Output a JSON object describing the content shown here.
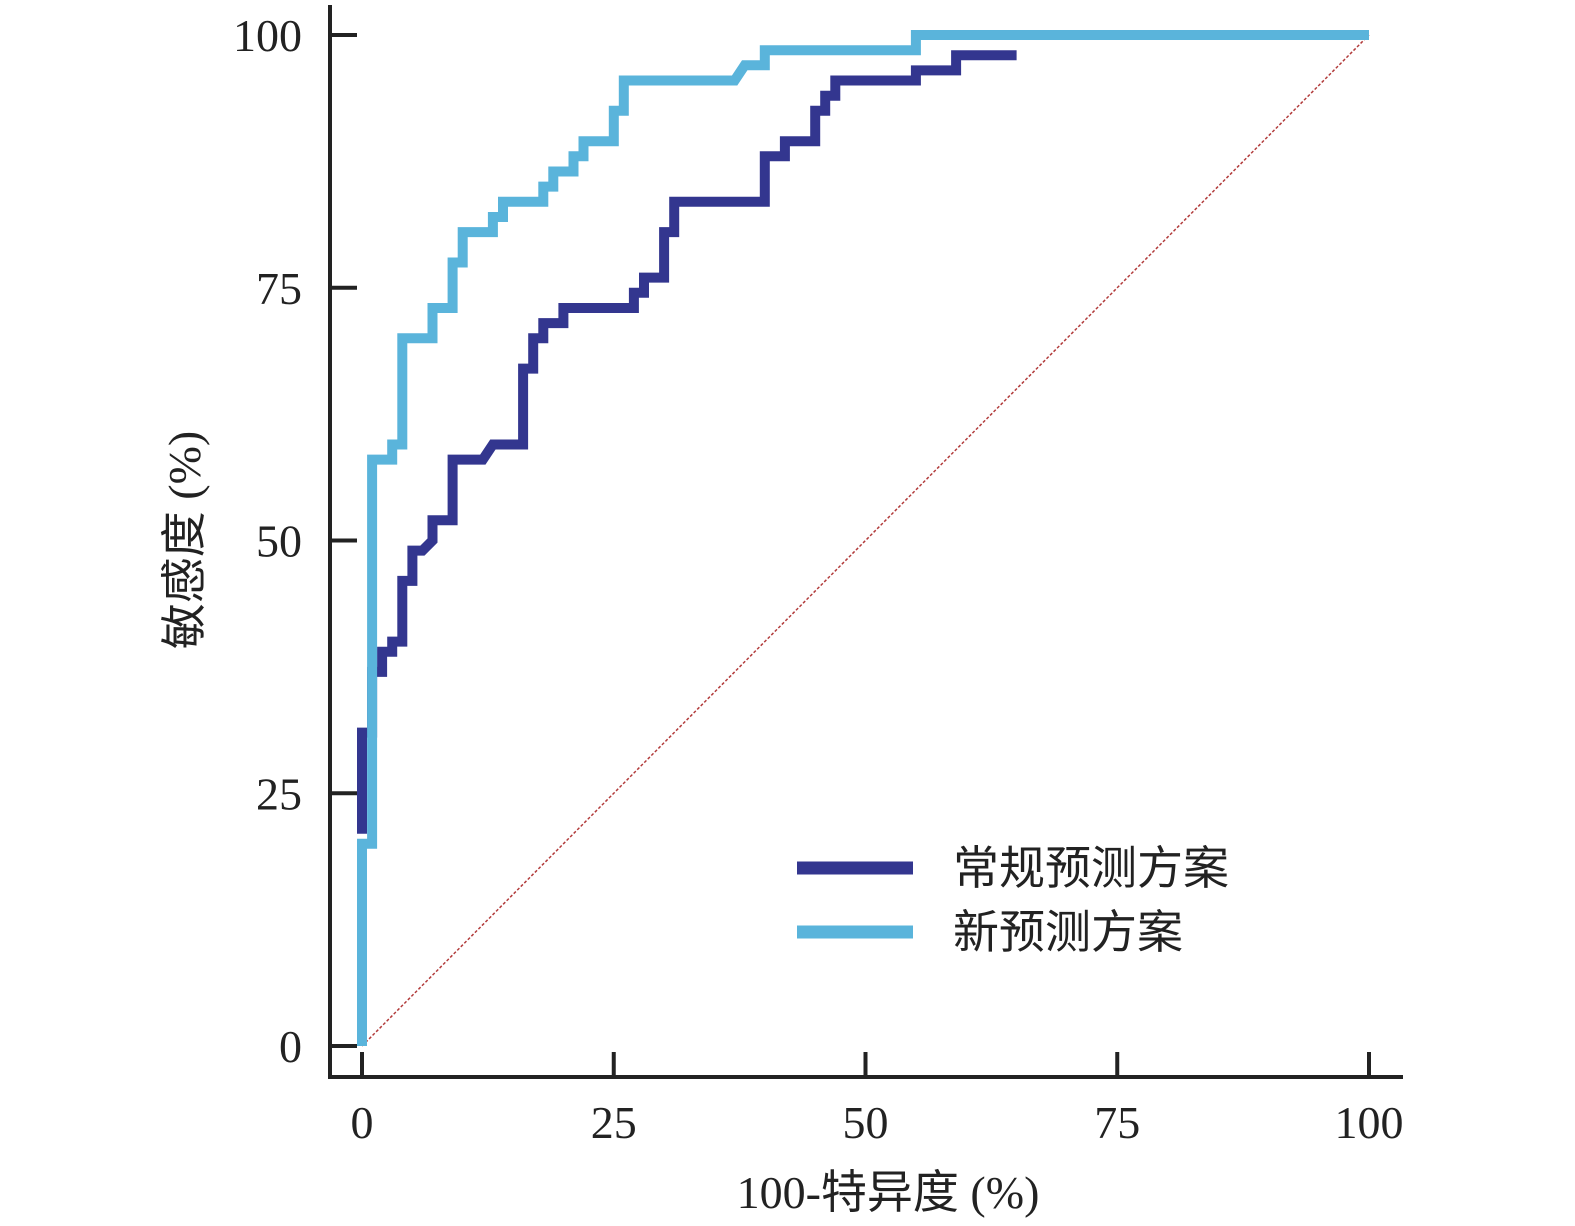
{
  "chart_data": {
    "type": "line",
    "title": "",
    "xlabel": "100-特异度 (%)",
    "ylabel": "敏感度 (%)",
    "xlim": [
      0,
      100
    ],
    "ylim": [
      0,
      100
    ],
    "x_ticks": [
      "0",
      "25",
      "50",
      "75",
      "100"
    ],
    "y_ticks": [
      "0",
      "25",
      "50",
      "75",
      "100"
    ],
    "legend_position": "bottom-right",
    "grid": false,
    "series": [
      {
        "name": "常规预测方案",
        "color": "#33368f",
        "points": [
          [
            0,
            21
          ],
          [
            0,
            31
          ],
          [
            1,
            31
          ],
          [
            1,
            37
          ],
          [
            2,
            37
          ],
          [
            2,
            39
          ],
          [
            3,
            39
          ],
          [
            3,
            40
          ],
          [
            4,
            40
          ],
          [
            4,
            46
          ],
          [
            5,
            46
          ],
          [
            5,
            49
          ],
          [
            6,
            49
          ],
          [
            7,
            50
          ],
          [
            7,
            52
          ],
          [
            9,
            52
          ],
          [
            9,
            58
          ],
          [
            12,
            58
          ],
          [
            13,
            59.5
          ],
          [
            16,
            59.5
          ],
          [
            16,
            67
          ],
          [
            17,
            67
          ],
          [
            17,
            70
          ],
          [
            18,
            70
          ],
          [
            18,
            71.5
          ],
          [
            20,
            71.5
          ],
          [
            20,
            73
          ],
          [
            27,
            73
          ],
          [
            27,
            74.5
          ],
          [
            28,
            74.5
          ],
          [
            28,
            76
          ],
          [
            30,
            76
          ],
          [
            30,
            80.5
          ],
          [
            31,
            80.5
          ],
          [
            31,
            83.5
          ],
          [
            40,
            83.5
          ],
          [
            40,
            88
          ],
          [
            42,
            88
          ],
          [
            42,
            89.5
          ],
          [
            45,
            89.5
          ],
          [
            45,
            92.5
          ],
          [
            46,
            92.5
          ],
          [
            46,
            94
          ],
          [
            47,
            94
          ],
          [
            47,
            95.5
          ],
          [
            55,
            95.5
          ],
          [
            55,
            96.5
          ],
          [
            59,
            96.5
          ],
          [
            59,
            98
          ],
          [
            65,
            98
          ]
        ]
      },
      {
        "name": "新预测方案",
        "color": "#5ab4db",
        "points": [
          [
            0,
            0
          ],
          [
            0,
            20
          ],
          [
            1,
            20
          ],
          [
            1,
            58
          ],
          [
            3,
            58
          ],
          [
            3,
            59.5
          ],
          [
            4,
            59.5
          ],
          [
            4,
            70
          ],
          [
            7,
            70
          ],
          [
            7,
            73
          ],
          [
            9,
            73
          ],
          [
            9,
            77.5
          ],
          [
            10,
            77.5
          ],
          [
            10,
            80.5
          ],
          [
            13,
            80.5
          ],
          [
            13,
            82
          ],
          [
            14,
            82
          ],
          [
            14,
            83.5
          ],
          [
            18,
            83.5
          ],
          [
            18,
            85
          ],
          [
            19,
            85
          ],
          [
            19,
            86.5
          ],
          [
            21,
            86.5
          ],
          [
            21,
            88
          ],
          [
            22,
            88
          ],
          [
            22,
            89.5
          ],
          [
            25,
            89.5
          ],
          [
            25,
            92.5
          ],
          [
            26,
            92.5
          ],
          [
            26,
            95.5
          ],
          [
            37,
            95.5
          ],
          [
            38,
            97
          ],
          [
            40,
            97
          ],
          [
            40,
            98.5
          ],
          [
            55,
            98.5
          ],
          [
            55,
            100
          ],
          [
            100,
            100
          ]
        ]
      },
      {
        "name": "",
        "role": "reference",
        "color": "#b23b3b",
        "dashed": true,
        "points": [
          [
            0,
            0
          ],
          [
            100,
            100
          ]
        ]
      }
    ]
  }
}
